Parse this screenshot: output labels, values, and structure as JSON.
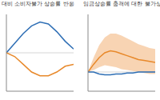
{
  "chart_data": [
    {
      "type": "line",
      "title": "대비 소비자물가 상승률 반응",
      "x": [
        0,
        1,
        2,
        3,
        4,
        5,
        6,
        7,
        8
      ],
      "series": [
        {
          "color": "#2f6fb5",
          "values": [
            0.0,
            0.25,
            0.5,
            0.7,
            0.8,
            0.75,
            0.55,
            0.3,
            0.1
          ],
          "line_style": "solid"
        },
        {
          "color": "#e8892b",
          "values": [
            0.0,
            -0.1,
            -0.3,
            -0.5,
            -0.6,
            -0.6,
            -0.5,
            -0.35,
            -0.3
          ],
          "line_style": "solid"
        }
      ],
      "xlim": [
        0,
        8
      ],
      "ylim": [
        -1,
        1
      ],
      "xticks": [
        0,
        2,
        4,
        6,
        8
      ],
      "yticks": [
        -1,
        -0.5,
        0,
        0.5,
        1
      ],
      "tick_labels": false,
      "grid": false
    },
    {
      "type": "line",
      "title": "임금상승률 충격에 대한 물가상승률 반응",
      "x": [
        0,
        1,
        2,
        3,
        4,
        5,
        6,
        7,
        8,
        9,
        10,
        11,
        12
      ],
      "series": [
        {
          "color": "#e8892b",
          "values": [
            0.0,
            0.08,
            0.15,
            0.2,
            0.22,
            0.21,
            0.19,
            0.17,
            0.15,
            0.13,
            0.12,
            0.11,
            0.1
          ],
          "line_style": "solid"
        },
        {
          "color": "#2f6fb5",
          "values": [
            0.0,
            0.0,
            -0.02,
            -0.03,
            -0.03,
            -0.02,
            -0.02,
            -0.01,
            -0.01,
            0.0,
            0.0,
            0.0,
            0.0
          ],
          "line_style": "solid"
        }
      ],
      "band_lower": [
        0.0,
        0.02,
        0.05,
        0.07,
        0.06,
        0.05,
        0.03,
        0.02,
        0.01,
        0.0,
        -0.01,
        -0.02,
        -0.02
      ],
      "band_upper": [
        0.0,
        0.15,
        0.28,
        0.36,
        0.4,
        0.4,
        0.38,
        0.35,
        0.32,
        0.29,
        0.27,
        0.25,
        0.24
      ],
      "band_color": "#f6c9a0",
      "xlim": [
        0,
        12
      ],
      "ylim": [
        -0.2,
        0.6
      ],
      "xticks": [
        0,
        3,
        6,
        9,
        12
      ],
      "yticks": [
        -0.2,
        0,
        0.2,
        0.4,
        0.6
      ],
      "tick_labels": false,
      "grid": false
    }
  ]
}
